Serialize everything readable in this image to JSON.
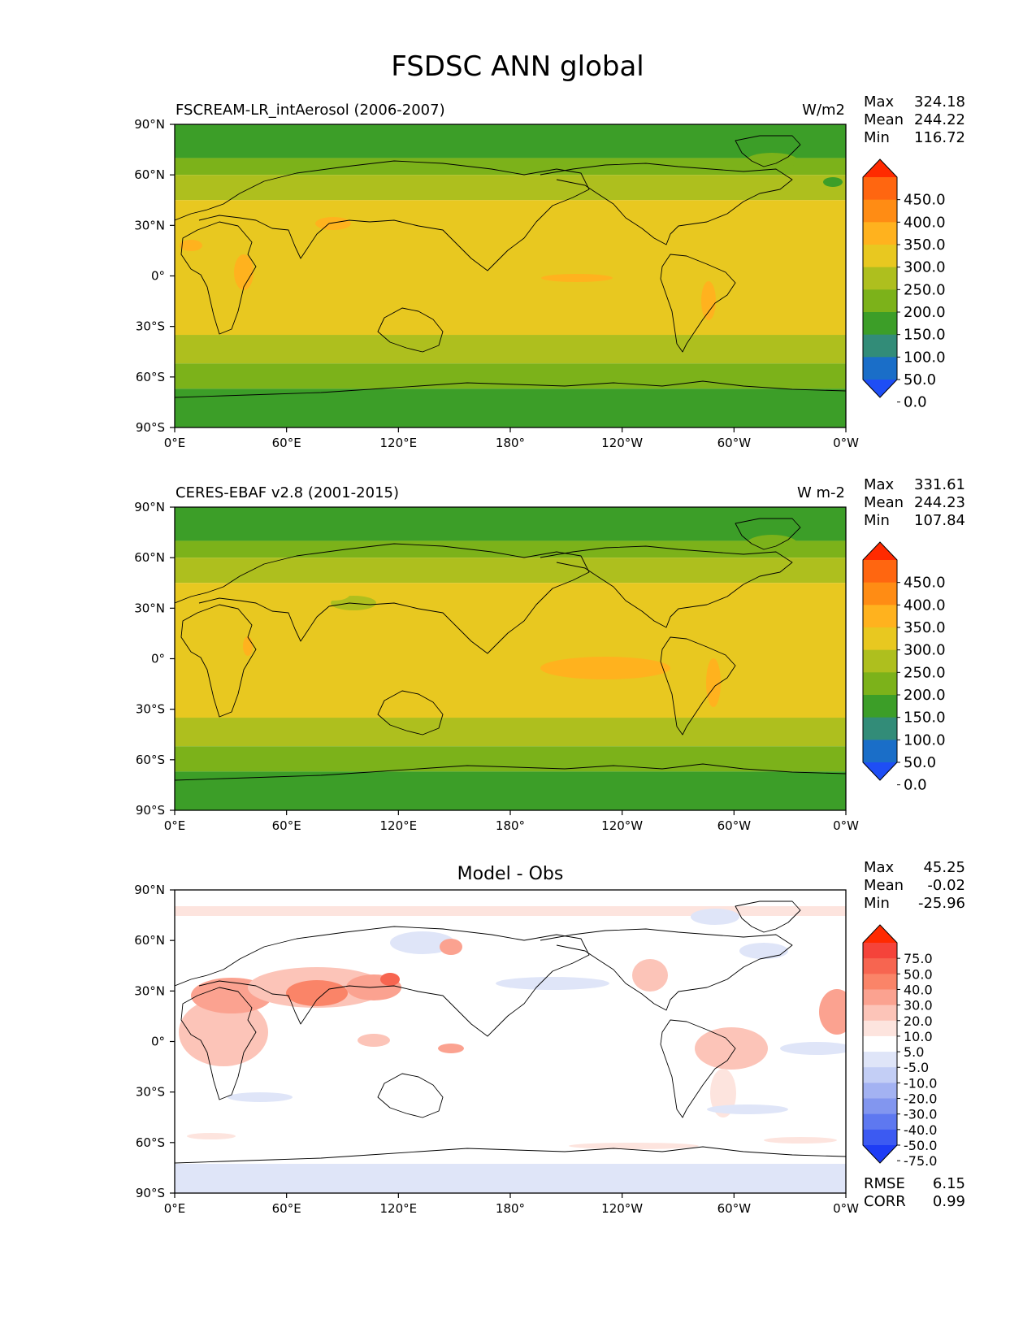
{
  "figure": {
    "title": "FSDSC ANN global"
  },
  "panels": [
    {
      "id": "test",
      "title_left": "FSCREAM-LR_intAerosol (2006-2007)",
      "title_center": "",
      "units": "W/m2",
      "stats": [
        {
          "label": "Max",
          "value": "324.18"
        },
        {
          "label": "Mean",
          "value": "244.22"
        },
        {
          "label": "Min",
          "value": "116.72"
        }
      ],
      "colorbar_labels": [
        "450.0",
        "400.0",
        "350.0",
        "300.0",
        "250.0",
        "200.0",
        "150.0",
        "100.0",
        "50.0",
        "0.0"
      ],
      "colorbar_colors": [
        "#ff2a00",
        "#ff6610",
        "#ff8c14",
        "#ffb21e",
        "#e8c820",
        "#aebf1e",
        "#7cb21a",
        "#3c9e28",
        "#328c78",
        "#1a6ec8",
        "#1e4ef5"
      ],
      "extra_stats": []
    },
    {
      "id": "ref",
      "title_left": "CERES-EBAF v2.8 (2001-2015)",
      "title_center": "",
      "units": "W m-2",
      "stats": [
        {
          "label": "Max",
          "value": "331.61"
        },
        {
          "label": "Mean",
          "value": "244.23"
        },
        {
          "label": "Min",
          "value": "107.84"
        }
      ],
      "colorbar_labels": [
        "450.0",
        "400.0",
        "350.0",
        "300.0",
        "250.0",
        "200.0",
        "150.0",
        "100.0",
        "50.0",
        "0.0"
      ],
      "colorbar_colors": [
        "#ff2a00",
        "#ff6610",
        "#ff8c14",
        "#ffb21e",
        "#e8c820",
        "#aebf1e",
        "#7cb21a",
        "#3c9e28",
        "#328c78",
        "#1a6ec8",
        "#1e4ef5"
      ],
      "extra_stats": []
    },
    {
      "id": "diff",
      "title_left": "",
      "title_center": "Model - Obs",
      "units": "",
      "stats": [
        {
          "label": "Max",
          "value": "45.25"
        },
        {
          "label": "Mean",
          "value": "-0.02"
        },
        {
          "label": "Min",
          "value": "-25.96"
        }
      ],
      "colorbar_labels": [
        "75.0",
        "50.0",
        "40.0",
        "30.0",
        "20.0",
        "10.0",
        "5.0",
        "-5.0",
        "-10.0",
        "-20.0",
        "-30.0",
        "-40.0",
        "-50.0",
        "-75.0"
      ],
      "colorbar_colors": [
        "#ff2a00",
        "#f5433a",
        "#f76550",
        "#fa8468",
        "#fba290",
        "#fcc4b8",
        "#fde4de",
        "#ffffff",
        "#dfe5f8",
        "#c3cef5",
        "#a3b2f2",
        "#8296ef",
        "#5e78f0",
        "#3c5af2",
        "#1e3cf5"
      ],
      "extra_stats": [
        {
          "label": "RMSE",
          "value": "6.15"
        },
        {
          "label": "CORR",
          "value": "0.99"
        }
      ]
    }
  ],
  "axes": {
    "lat_ticks": [
      "90°N",
      "60°N",
      "30°N",
      "0°",
      "30°S",
      "60°S",
      "90°S"
    ],
    "lon_ticks": [
      "0°E",
      "60°E",
      "120°E",
      "180°",
      "120°W",
      "60°W",
      "0°W"
    ]
  },
  "map_fields": {
    "mean_bands": [
      {
        "lat_from": 90,
        "lat_to": 70,
        "color": "#3c9e28"
      },
      {
        "lat_from": 70,
        "lat_to": 60,
        "color": "#7cb21a"
      },
      {
        "lat_from": 60,
        "lat_to": 45,
        "color": "#aebf1e"
      },
      {
        "lat_from": 45,
        "lat_to": -35,
        "color": "#e8c820"
      },
      {
        "lat_from": -35,
        "lat_to": -52,
        "color": "#aebf1e"
      },
      {
        "lat_from": -52,
        "lat_to": -67,
        "color": "#7cb21a"
      },
      {
        "lat_from": -67,
        "lat_to": -90,
        "color": "#3c9e28"
      }
    ]
  }
}
